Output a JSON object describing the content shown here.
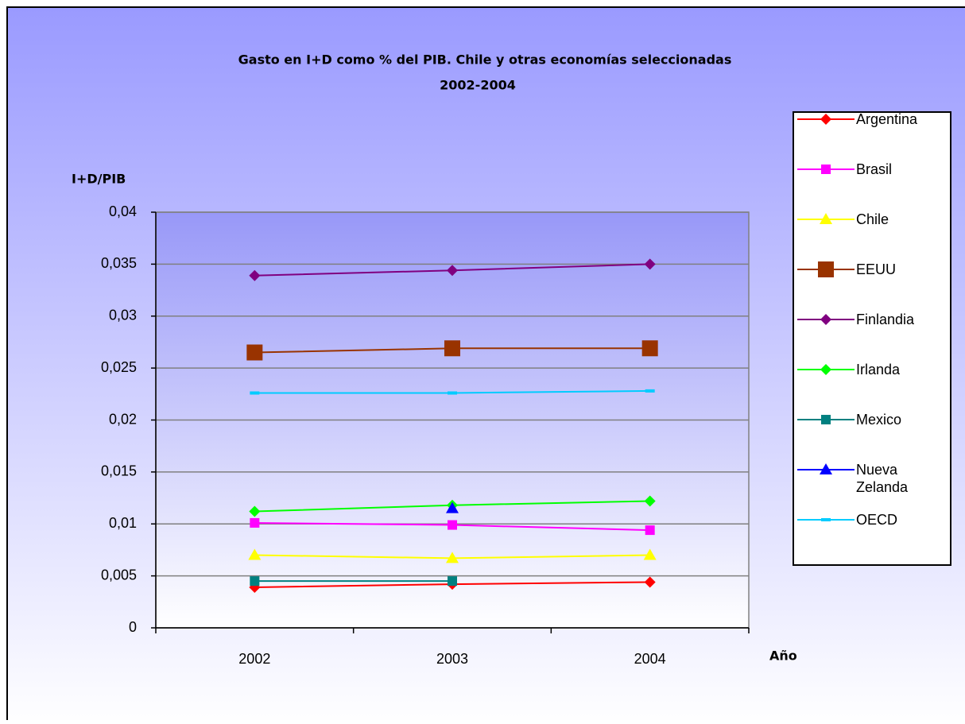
{
  "chart_data": {
    "type": "line",
    "title": "Gasto en I+D como % del PIB. Chile y otras economías seleccionadas",
    "subtitle": "2002-2004",
    "y_label": "I+D/PIB",
    "x_label": "Año",
    "categories": [
      "2002",
      "2003",
      "2004"
    ],
    "ylim": [
      0,
      0.04
    ],
    "yticks": [
      0,
      {
        "value": 0.005,
        "label": "0,005"
      },
      {
        "value": 0.01,
        "label": "0,01"
      },
      {
        "value": 0.015,
        "label": "0,015"
      },
      {
        "value": 0.02,
        "label": "0,02"
      },
      {
        "value": 0.025,
        "label": "0,025"
      },
      {
        "value": 0.03,
        "label": "0,03"
      },
      {
        "value": 0.035,
        "label": "0,035"
      },
      {
        "value": 0.04,
        "label": "0,04"
      }
    ],
    "grid": true,
    "legend": "right",
    "series": [
      {
        "name": "Argentina",
        "color": "#ff0000",
        "marker": "diamond",
        "values": [
          0.0039,
          0.0042,
          0.0044
        ]
      },
      {
        "name": "Brasil",
        "color": "#ff00ff",
        "marker": "square",
        "values": [
          0.0101,
          0.0099,
          0.0094
        ]
      },
      {
        "name": "Chile",
        "color": "#ffff00",
        "marker": "triangle",
        "values": [
          0.007,
          0.0067,
          0.007
        ]
      },
      {
        "name": "EEUU",
        "color": "#993300",
        "marker": "big-square",
        "values": [
          0.0265,
          0.0269,
          0.0269
        ]
      },
      {
        "name": "Finlandia",
        "color": "#800080",
        "marker": "diamond",
        "values": [
          0.0339,
          0.0344,
          0.035
        ]
      },
      {
        "name": "Irlanda",
        "color": "#00ff00",
        "marker": "diamond",
        "values": [
          0.0112,
          0.0118,
          0.0122
        ]
      },
      {
        "name": "Mexico",
        "color": "#008080",
        "marker": "square",
        "values": [
          0.0045,
          0.0045,
          null
        ]
      },
      {
        "name": "Nueva Zelanda",
        "color": "#0000ff",
        "marker": "triangle",
        "values": [
          null,
          0.0115,
          null
        ]
      },
      {
        "name": "OECD",
        "color": "#00ccff",
        "marker": "dash",
        "values": [
          0.0226,
          0.0226,
          0.0228
        ]
      }
    ]
  }
}
